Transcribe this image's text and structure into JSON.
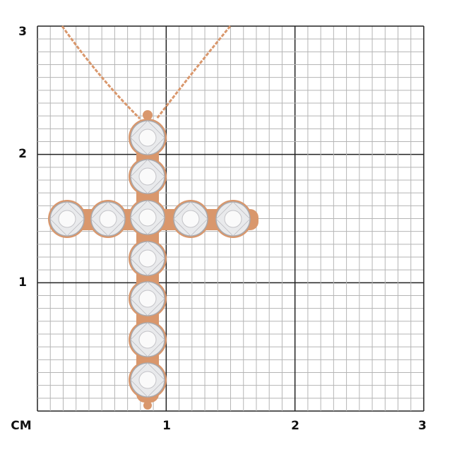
{
  "grid": {
    "unit_label": "CM",
    "x_tick_labels": [
      "1",
      "2",
      "3"
    ],
    "y_tick_labels": [
      "1",
      "2",
      "3"
    ],
    "range_cm": [
      0,
      3
    ],
    "minor_divisions_per_cm": 10
  },
  "product": {
    "type": "cross pendant on chain",
    "metal_color": "#d9976c",
    "stone_count": 11
  }
}
